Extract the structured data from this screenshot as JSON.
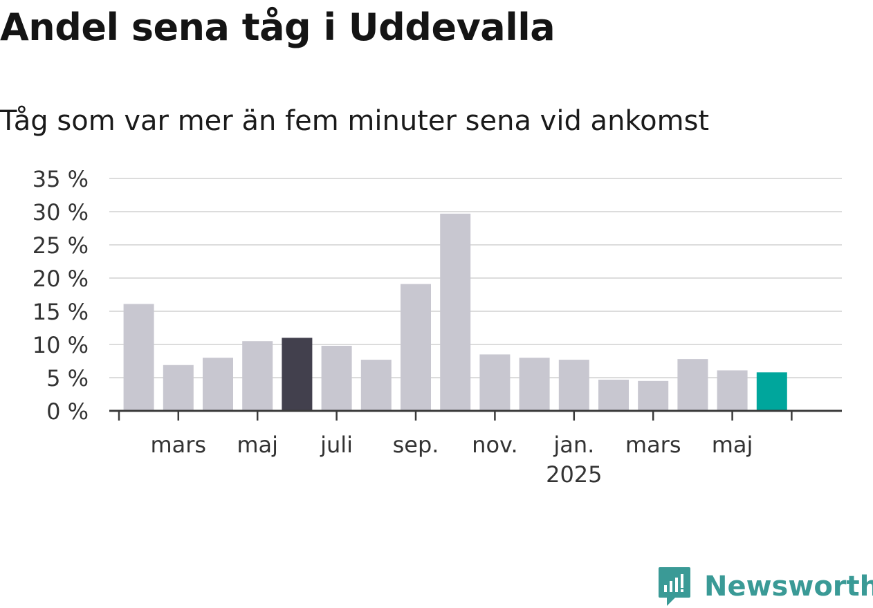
{
  "title": "Andel sena tåg i Uddevalla",
  "subtitle": "Tåg som var mer än fem minuter sena vid ankomst",
  "brand": {
    "name": "Newsworthy",
    "color": "#3a9a96",
    "icon": "newsworthy-logo-icon"
  },
  "chart_data": {
    "type": "bar",
    "title": "Andel sena tåg i Uddevalla",
    "subtitle": "Tåg som var mer än fem minuter sena vid ankomst",
    "xlabel": "",
    "ylabel": "",
    "ylim": [
      0,
      35
    ],
    "yticks": [
      0,
      5,
      10,
      15,
      20,
      25,
      30,
      35
    ],
    "ytick_labels": [
      "0 %",
      "5 %",
      "10 %",
      "15 %",
      "20 %",
      "25 %",
      "30 %",
      "35 %"
    ],
    "grid": true,
    "categories": [
      "2024-02",
      "2024-03",
      "2024-04",
      "2024-05",
      "2024-06",
      "2024-07",
      "2024-08",
      "2024-09",
      "2024-10",
      "2024-11",
      "2024-12",
      "2025-01",
      "2025-02",
      "2025-03",
      "2025-04",
      "2025-05",
      "2025-06"
    ],
    "values": [
      16.1,
      6.9,
      8.0,
      10.5,
      11.0,
      9.8,
      7.7,
      19.1,
      29.7,
      8.5,
      8.0,
      7.7,
      4.7,
      4.5,
      7.8,
      6.1,
      5.8
    ],
    "bar_colors": [
      "#c8c7d0",
      "#c8c7d0",
      "#c8c7d0",
      "#c8c7d0",
      "#42404d",
      "#c8c7d0",
      "#c8c7d0",
      "#c8c7d0",
      "#c8c7d0",
      "#c8c7d0",
      "#c8c7d0",
      "#c8c7d0",
      "#c8c7d0",
      "#c8c7d0",
      "#c8c7d0",
      "#c8c7d0",
      "#00a69c"
    ],
    "xtick_labels": [
      {
        "index": 1,
        "label": "mars"
      },
      {
        "index": 3,
        "label": "maj"
      },
      {
        "index": 5,
        "label": "juli"
      },
      {
        "index": 7,
        "label": "sep."
      },
      {
        "index": 9,
        "label": "nov."
      },
      {
        "index": 11,
        "label": "jan.",
        "sublabel": "2025"
      },
      {
        "index": 13,
        "label": "mars"
      },
      {
        "index": 15,
        "label": "maj"
      }
    ]
  }
}
